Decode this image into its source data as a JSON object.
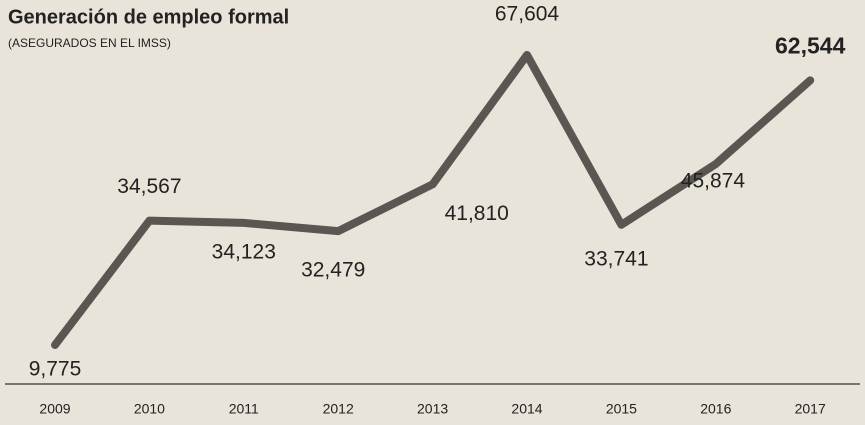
{
  "chart_data": {
    "type": "line",
    "title": "Generación de empleo formal",
    "subtitle": "(ASEGURADOS EN EL IMSS)",
    "categories": [
      "2009",
      "2010",
      "2011",
      "2012",
      "2013",
      "2014",
      "2015",
      "2016",
      "2017"
    ],
    "values": [
      9775,
      34567,
      34123,
      32479,
      41810,
      67604,
      33741,
      45874,
      62544
    ],
    "value_labels": [
      "9,775",
      "34,567",
      "34,123",
      "32,479",
      "41,810",
      "67,604",
      "33,741",
      "45,874",
      "62,544"
    ],
    "color": "#5a5651"
  }
}
